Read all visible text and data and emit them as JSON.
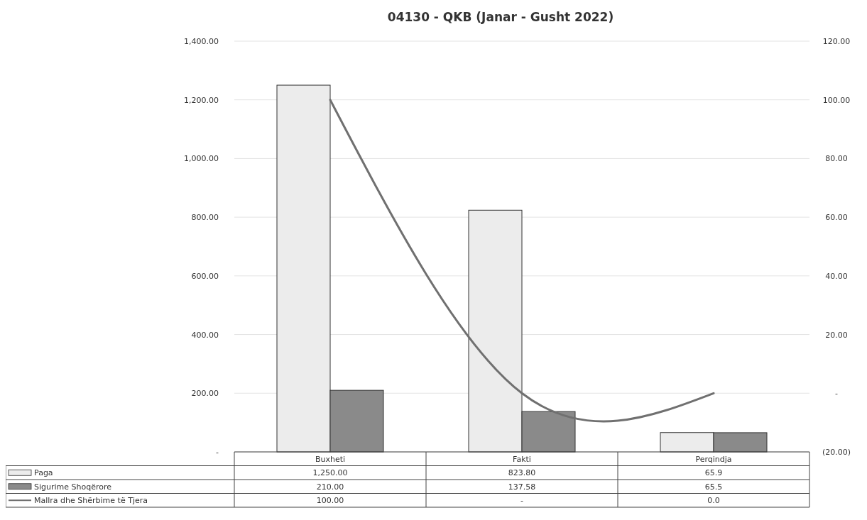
{
  "chart_data": {
    "type": "bar",
    "title": "04130 - QKB (Janar - Gusht 2022)",
    "categories": [
      "Buxheti",
      "Fakti",
      "Perqindja"
    ],
    "series": [
      {
        "name": "Paga",
        "color": "#ececec",
        "values": [
          1250,
          823.8,
          65.9
        ],
        "value_labels": [
          "1,250.00",
          "823.80",
          "65.9"
        ]
      },
      {
        "name": "Sigurime Shoqërore",
        "color": "#8a8a8a",
        "values": [
          210,
          137.58,
          65.5
        ],
        "value_labels": [
          "210.00",
          "137.58",
          "65.5"
        ]
      },
      {
        "name": "Mallra dhe Shërbime të Tjera",
        "type": "line",
        "axis": "y2",
        "color": "#707070",
        "values": [
          100,
          0,
          0
        ],
        "value_labels": [
          "100.00",
          "-",
          "0.0"
        ]
      }
    ],
    "ylim": [
      0,
      1400
    ],
    "yticks": [
      {
        "value": 0,
        "label": "-"
      },
      {
        "value": 200,
        "label": "200.00"
      },
      {
        "value": 400,
        "label": "400.00"
      },
      {
        "value": 600,
        "label": "600.00"
      },
      {
        "value": 800,
        "label": "800.00"
      },
      {
        "value": 1000,
        "label": "1,000.00"
      },
      {
        "value": 1200,
        "label": "1,200.00"
      },
      {
        "value": 1400,
        "label": "1,400.00"
      }
    ],
    "y2lim": [
      -20,
      120
    ],
    "y2ticks": [
      {
        "value": -20,
        "label": "(20.00)"
      },
      {
        "value": 0,
        "label": "-"
      },
      {
        "value": 20,
        "label": "20.00"
      },
      {
        "value": 40,
        "label": "40.00"
      },
      {
        "value": 60,
        "label": "60.00"
      },
      {
        "value": 80,
        "label": "80.00"
      },
      {
        "value": 100,
        "label": "100.00"
      },
      {
        "value": 120,
        "label": "120.00"
      }
    ],
    "grid": "y",
    "legend": "bottom",
    "line_style": "solid",
    "marker": "none"
  }
}
